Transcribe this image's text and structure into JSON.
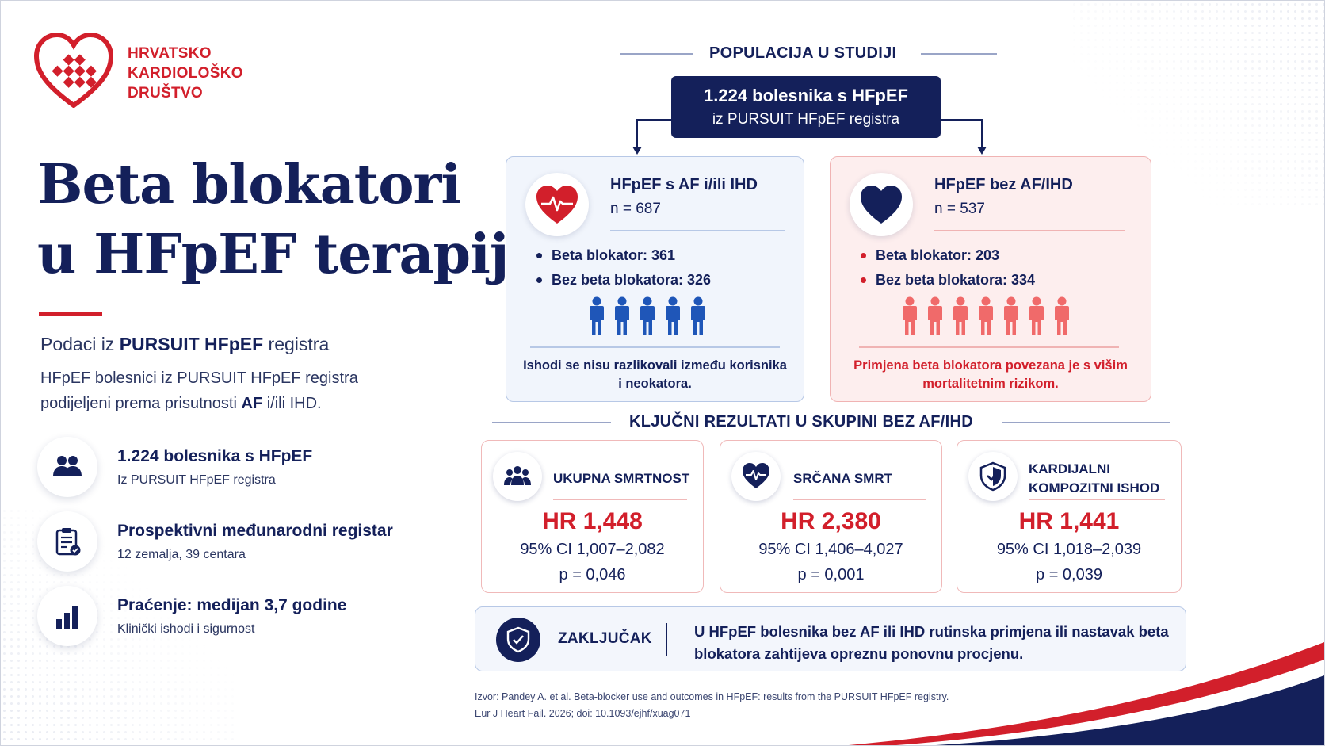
{
  "logo": {
    "line1": "HRVATSKO",
    "line2": "KARDIOLOŠKO",
    "line3": "DRUŠTVO",
    "color": "#d21f2b"
  },
  "title": {
    "line1": "Beta blokatori",
    "line2": "u HFpEF terapiji"
  },
  "subtitle": {
    "prefix": "Podaci iz ",
    "bold": "PURSUIT HFpEF",
    "suffix": " registra"
  },
  "description": {
    "part1": "HFpEF bolesnici iz PURSUIT HFpEF registra podijeljeni prema prisutnosti ",
    "bold": "AF",
    "part2": " i/ili IHD."
  },
  "features": [
    {
      "icon": "people-icon",
      "title": "1.224 bolesnika s HFpEF",
      "subtitle": "Iz PURSUIT HFpEF registra"
    },
    {
      "icon": "clipboard-icon",
      "title": "Prospektivni međunarodni registar",
      "subtitle": "12 zemalja, 39 centara"
    },
    {
      "icon": "bar-chart-icon",
      "title": "Praćenje: medijan 3,7 godine",
      "subtitle": "Klinički ishodi i sigurnost"
    }
  ],
  "population": {
    "heading": "POPULACIJA U STUDIJI",
    "box_line1": "1.224 bolesnika s HFpEF",
    "box_line2": "iz PURSUIT HFpEF registra"
  },
  "groups": {
    "with": {
      "icon": "heart-pulse-icon",
      "title": "HFpEF s AF i/ili IHD",
      "n": "n = 687",
      "items": [
        "Beta blokator: 361",
        "Bez beta blokatora: 326"
      ],
      "people_count": 5,
      "note": "Ishodi se nisu razlikovali između korisnika i neokatora.",
      "color": "#1f3c8c"
    },
    "without": {
      "icon": "heart-icon",
      "title": "HFpEF bez AF/IHD",
      "n": "n = 537",
      "items": [
        "Beta blokator: 203",
        "Bez beta blokatora: 334"
      ],
      "people_count": 7,
      "note": "Primjena beta blokatora povezana je s višim mortalitetnim rizikom.",
      "color": "#d21f2b"
    }
  },
  "results": {
    "heading": "KLJUČNI REZULTATI U SKUPINI BEZ AF/IHD",
    "cards": [
      {
        "icon": "group-icon",
        "title_line1": "UKUPNA SMRTNOST",
        "title_line2": "",
        "hr": "HR 1,448",
        "ci": "95% CI 1,007–2,082",
        "p": "p = 0,046"
      },
      {
        "icon": "heart-pulse-icon",
        "title_line1": "SRČANA SMRT",
        "title_line2": "",
        "hr": "HR 2,380",
        "ci": "95% CI 1,406–4,027",
        "p": "p = 0,001"
      },
      {
        "icon": "shield-check-icon",
        "title_line1": "KARDIJALNI",
        "title_line2": "KOMPOZITNI ISHOD",
        "hr": "HR 1,441",
        "ci": "95% CI 1,018–2,039",
        "p": "p = 0,039"
      }
    ]
  },
  "conclusion": {
    "label": "ZAKLJUČAK",
    "text": "U HFpEF bolesnika bez AF ili IHD rutinska primjena ili nastavak beta blokatora zahtijeva opreznu ponovnu procjenu."
  },
  "source": {
    "line1": "Izvor: Pandey A. et al. Beta-blocker use and outcomes in HFpEF: results from the PURSUIT HFpEF registry.",
    "line2": "Eur J Heart Fail. 2026; doi: 10.1093/ejhf/xuag071"
  },
  "colors": {
    "navy": "#14205a",
    "red": "#d21f2b",
    "blue_person": "#1f56b8",
    "red_person": "#f06a6a"
  }
}
